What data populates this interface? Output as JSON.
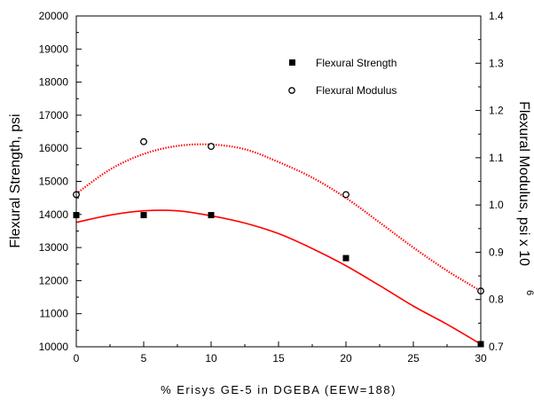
{
  "chart_data": {
    "type": "scatter",
    "xlabel": "% Erisys GE-5 in DGEBA (EEW=188)",
    "ylabel_left": "Flexural Strength, psi",
    "ylabel_right": "Flexural Modulus, psi x 10",
    "ylabel_right_exponent": "6",
    "xlim": [
      0,
      30
    ],
    "ylim_left": [
      10000,
      20000
    ],
    "ylim_right": [
      0.7,
      1.4
    ],
    "x_ticks": [
      "0",
      "5",
      "10",
      "15",
      "20",
      "25",
      "30"
    ],
    "y_left_ticks": [
      "10000",
      "11000",
      "12000",
      "13000",
      "14000",
      "15000",
      "16000",
      "17000",
      "18000",
      "19000",
      "20000"
    ],
    "y_right_ticks": [
      "0.7",
      "0.8",
      "0.9",
      "1.0",
      "1.1",
      "1.2",
      "1.3",
      "1.4"
    ],
    "legend_position": "top-right",
    "series": [
      {
        "name": "Flexural Strength",
        "axis": "left",
        "marker": "filled-square",
        "color": "#000000",
        "x": [
          0,
          5,
          10,
          20,
          30
        ],
        "y": [
          13980,
          13980,
          13980,
          12680,
          10080
        ]
      },
      {
        "name": "Flexural Modulus",
        "axis": "right",
        "marker": "open-circle",
        "color": "#000000",
        "x": [
          0,
          5,
          10,
          20,
          30
        ],
        "y": [
          1.022,
          1.134,
          1.124,
          1.022,
          0.818
        ]
      }
    ],
    "fits": [
      {
        "axis": "left",
        "style": "solid",
        "color": "#ff0000",
        "x": [
          0,
          2.5,
          5,
          7.5,
          10,
          12.5,
          15,
          17.5,
          20,
          22.5,
          25,
          27.5,
          30
        ],
        "y": [
          13760,
          13980,
          14110,
          14110,
          13960,
          13740,
          13420,
          12970,
          12450,
          11850,
          11230,
          10680,
          10080
        ]
      },
      {
        "axis": "right",
        "style": "dotted",
        "color": "#ff0000",
        "x": [
          0,
          2.5,
          5,
          7.5,
          10,
          12.5,
          15,
          17.5,
          20,
          22.5,
          25,
          27.5,
          30
        ],
        "y": [
          1.024,
          1.075,
          1.108,
          1.125,
          1.128,
          1.118,
          1.091,
          1.058,
          1.015,
          0.963,
          0.91,
          0.861,
          0.818
        ]
      }
    ]
  }
}
